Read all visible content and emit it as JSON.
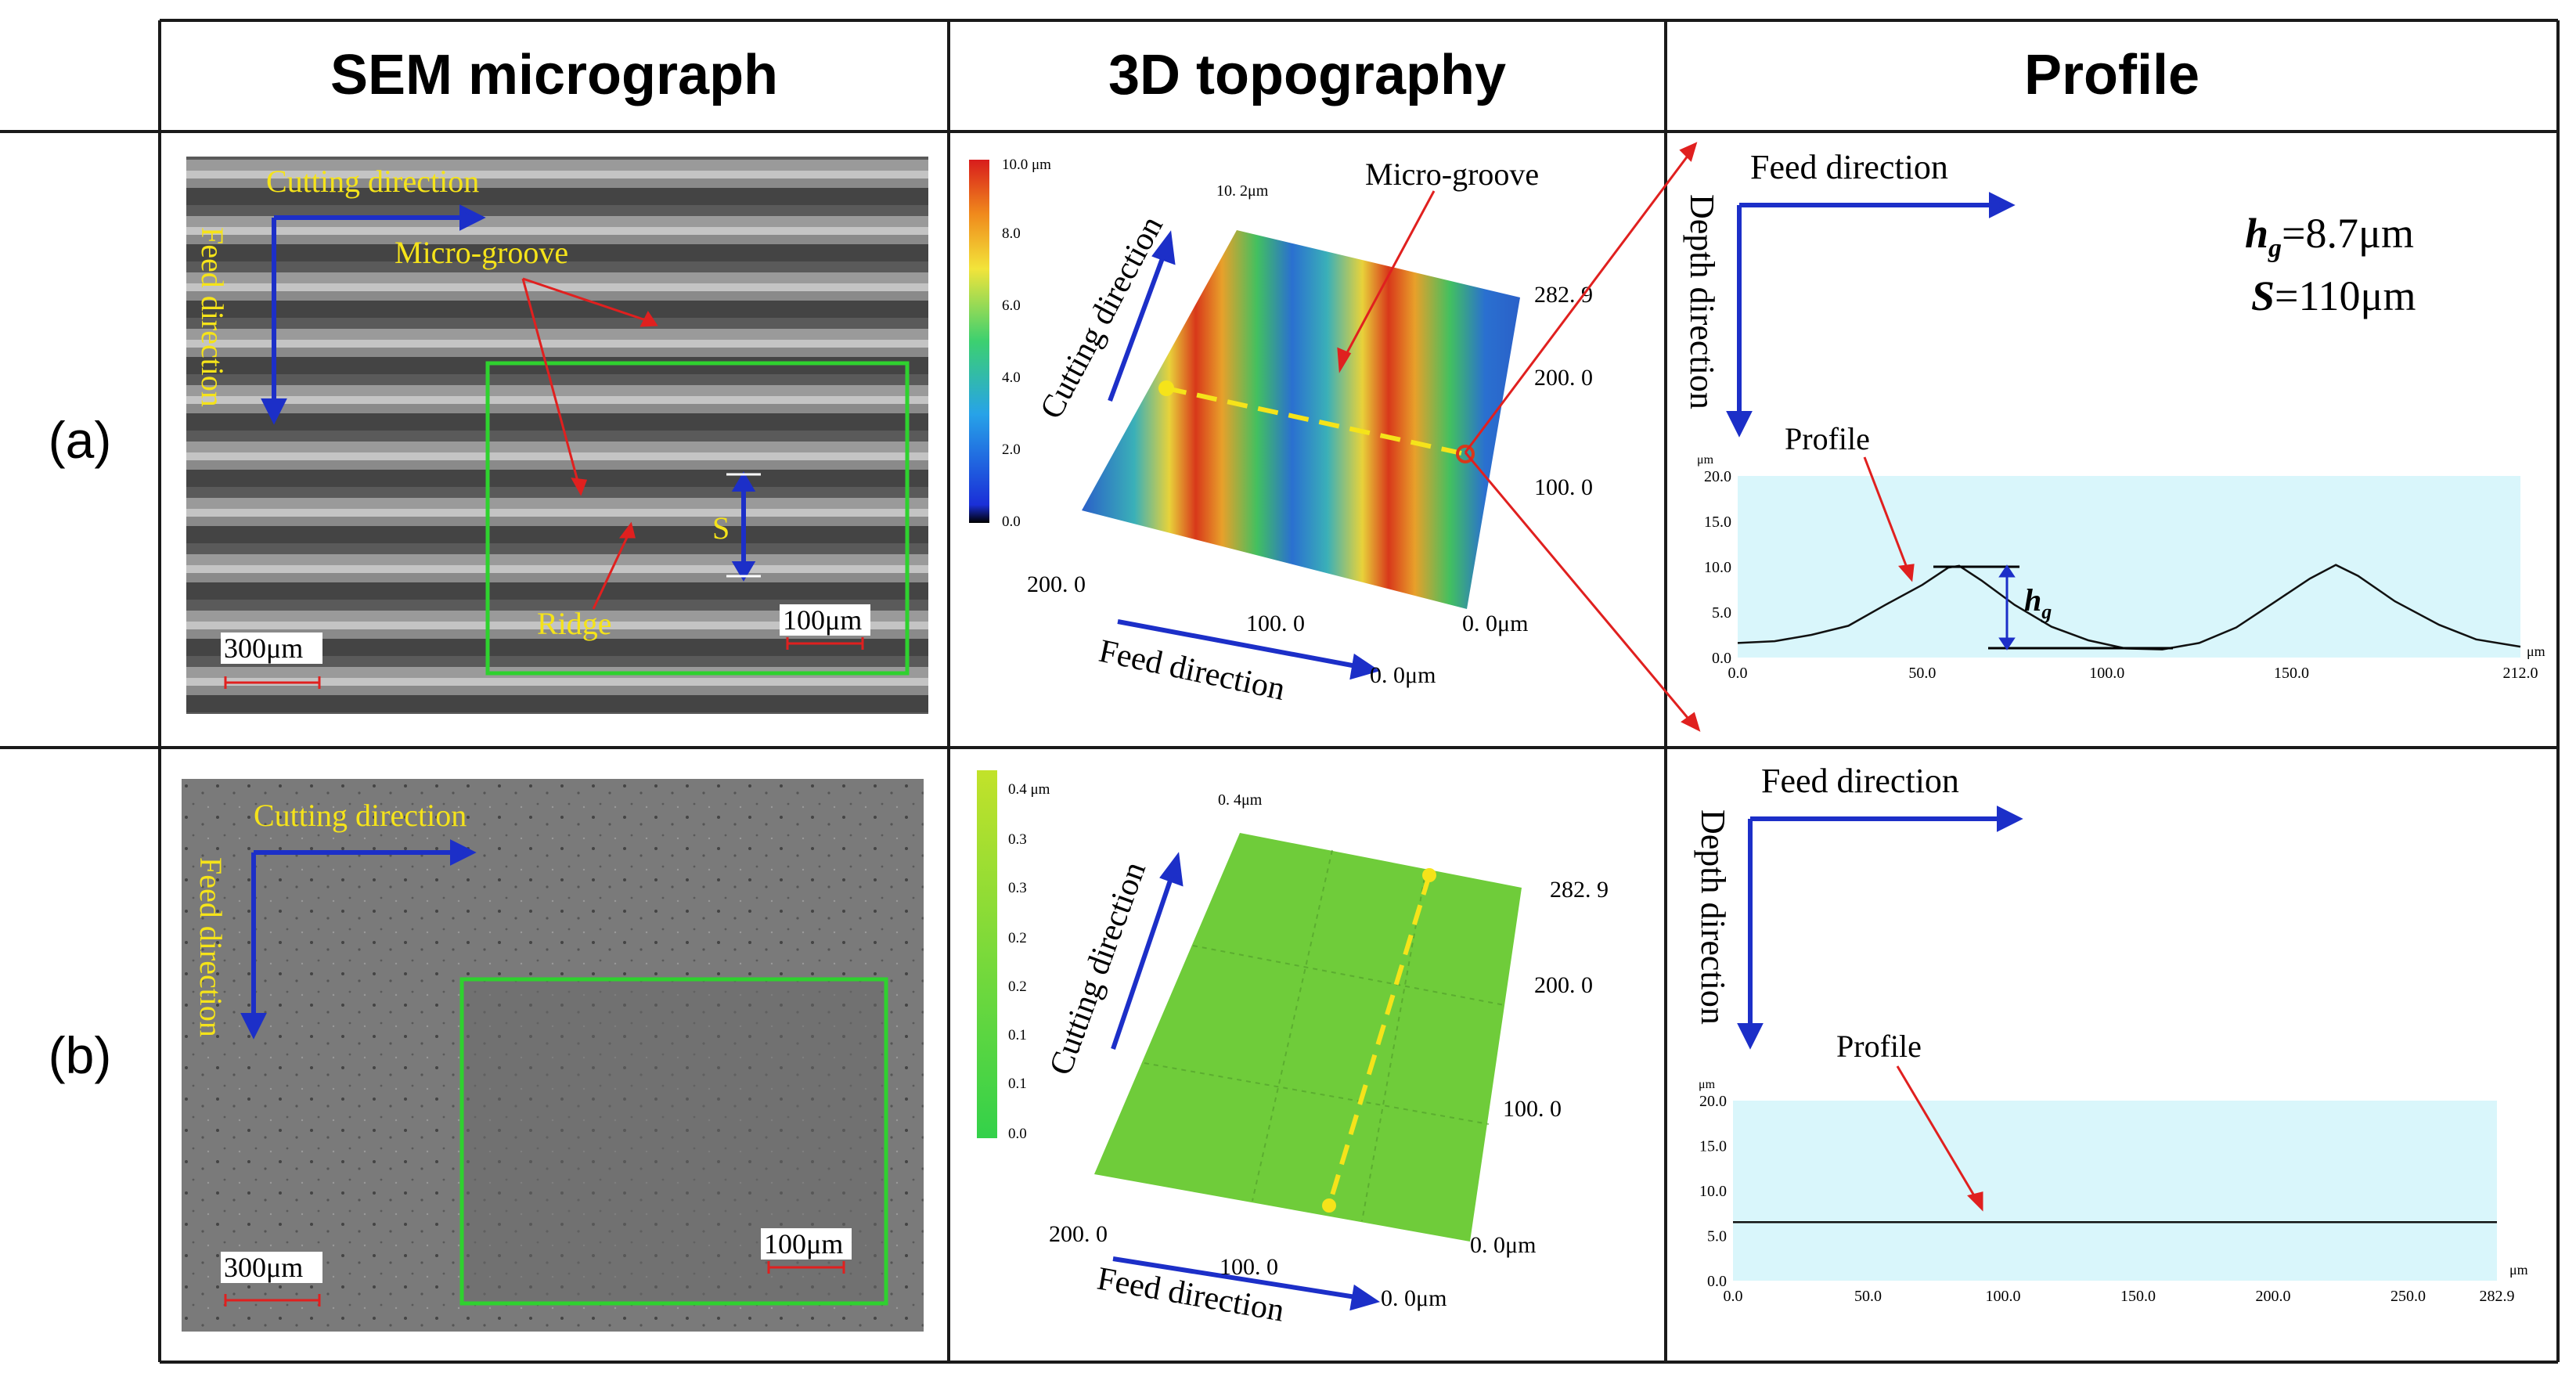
{
  "headers": {
    "sem": "SEM micrograph",
    "topo": "3D topography",
    "profile": "Profile"
  },
  "rows": [
    {
      "label": "(a)",
      "sem": {
        "cutting": "Cutting direction",
        "feed": "Feed direction",
        "groove": "Micro-groove",
        "ridge": "Ridge",
        "s": "S",
        "scale_big": "300μm",
        "scale_small": "100μm"
      },
      "topo": {
        "colorbar": [
          "10.0 μm",
          "8.0",
          "6.0",
          "4.0",
          "2.0",
          "0.0"
        ],
        "top_label": "10. 2μm",
        "groove": "Micro-groove",
        "y_ticks": [
          "282. 9",
          "200. 0",
          "100. 0",
          "0. 0μm"
        ],
        "x_ticks": [
          "200. 0",
          "100. 0",
          "0. 0μm"
        ],
        "cutting": "Cutting direction",
        "feed": "Feed direction"
      },
      "profile": {
        "feed": "Feed direction",
        "depth": "Depth direction",
        "label": "Profile",
        "hg_val": "=8.7μm",
        "s_val": "=110μm",
        "hg_sym": "h",
        "hg_sub": "g",
        "s_sym": "S",
        "y_unit": "μm",
        "x_unit": "μm",
        "y_ticks": [
          "20.0",
          "15.0",
          "10.0",
          "5.0",
          "0.0"
        ],
        "x_ticks": [
          "0.0",
          "50.0",
          "100.0",
          "150.0",
          "212.0"
        ],
        "x_max": 212,
        "y_max": 20,
        "curve": [
          [
            0,
            1.6
          ],
          [
            10,
            1.8
          ],
          [
            20,
            2.5
          ],
          [
            30,
            3.5
          ],
          [
            40,
            5.8
          ],
          [
            50,
            8.0
          ],
          [
            57,
            9.9
          ],
          [
            60,
            10.1
          ],
          [
            66,
            8.5
          ],
          [
            75,
            5.8
          ],
          [
            85,
            3.4
          ],
          [
            95,
            1.9
          ],
          [
            105,
            1.0
          ],
          [
            115,
            0.9
          ],
          [
            125,
            1.6
          ],
          [
            135,
            3.3
          ],
          [
            145,
            6.0
          ],
          [
            155,
            8.7
          ],
          [
            162,
            10.2
          ],
          [
            168,
            9.0
          ],
          [
            178,
            6.2
          ],
          [
            190,
            3.6
          ],
          [
            200,
            2.0
          ],
          [
            212,
            1.2
          ]
        ]
      }
    },
    {
      "label": "(b)",
      "sem": {
        "cutting": "Cutting direction",
        "feed": "Feed direction",
        "scale_big": "300μm",
        "scale_small": "100μm"
      },
      "topo": {
        "colorbar": [
          "0.4 μm",
          "0.3",
          "0.3",
          "0.2",
          "0.2",
          "0.1",
          "0.1",
          "0.0"
        ],
        "top_label": "0. 4μm",
        "y_ticks": [
          "282. 9",
          "200. 0",
          "100. 0",
          "0. 0μm"
        ],
        "x_ticks": [
          "200. 0",
          "100. 0",
          "0. 0μm"
        ],
        "cutting": "Cutting direction",
        "feed": "Feed direction"
      },
      "profile": {
        "feed": "Feed direction",
        "depth": "Depth direction",
        "label": "Profile",
        "y_unit": "μm",
        "x_unit": "μm",
        "y_ticks": [
          "20.0",
          "15.0",
          "10.0",
          "5.0",
          "0.0"
        ],
        "x_ticks": [
          "0.0",
          "50.0",
          "100.0",
          "150.0",
          "200.0",
          "250.0",
          "282.9"
        ],
        "x_max": 282.9,
        "y_max": 20,
        "flat_value": 6.5
      }
    }
  ],
  "colors": {
    "yellow": "#f5e31a",
    "blue": "#1c2fc8",
    "red": "#e0201f",
    "green": "#2fd12f",
    "plot_bg": "#d9f6fb"
  }
}
